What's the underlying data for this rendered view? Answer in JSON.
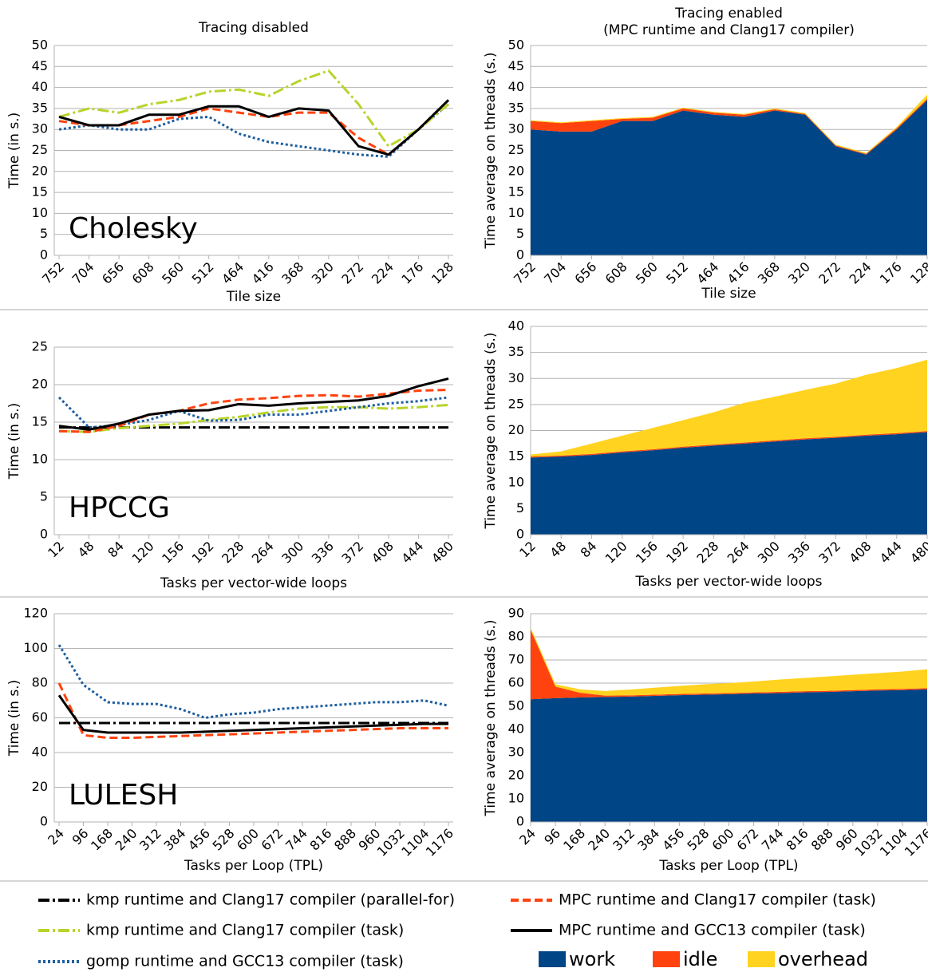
{
  "chart_data": [
    {
      "type": "line",
      "title": "Tracing disabled",
      "annotation": "Cholesky",
      "ylabel": "Time (in s.)",
      "xlabel": "Tile size",
      "categories": [
        752,
        704,
        656,
        608,
        560,
        512,
        464,
        416,
        368,
        320,
        272,
        224,
        176,
        128
      ],
      "ylim": [
        0,
        50
      ],
      "yticks": [
        0,
        5,
        10,
        15,
        20,
        25,
        30,
        35,
        40,
        45,
        50
      ],
      "grid": true,
      "series": [
        {
          "name": "gomp runtime and GCC13 compiler (task)",
          "color": "#1f5f9f",
          "dash": "dot",
          "values": [
            30,
            31,
            30,
            30,
            32.5,
            33,
            29,
            27,
            26,
            25,
            24,
            23.5,
            30,
            36
          ]
        },
        {
          "name": "kmp runtime and Clang17 compiler (task)",
          "color": "#b8d42a",
          "dash": "dash-dot",
          "values": [
            33,
            35,
            34,
            36,
            37,
            39,
            39.5,
            38,
            41.5,
            44,
            36,
            26,
            30,
            36
          ]
        },
        {
          "name": "MPC runtime and Clang17 compiler (task)",
          "color": "#ff420e",
          "dash": "dash",
          "values": [
            32,
            31,
            31,
            32,
            33,
            35,
            34,
            33,
            34,
            34,
            28,
            24,
            30,
            37
          ]
        },
        {
          "name": "MPC runtime and GCC13 compiler (task)",
          "color": "#000000",
          "dash": "solid",
          "values": [
            33,
            31,
            31,
            33.5,
            33.5,
            35.5,
            35.5,
            33,
            35,
            34.5,
            26,
            24,
            30,
            37
          ]
        }
      ]
    },
    {
      "type": "area",
      "title": "Tracing enabled",
      "subtitle": "(MPC runtime and Clang17 compiler)",
      "ylabel": "Time average on threads (s.)",
      "xlabel": "Tile size",
      "categories": [
        752,
        704,
        656,
        608,
        560,
        512,
        464,
        416,
        368,
        320,
        272,
        224,
        176,
        128
      ],
      "ylim": [
        0,
        50
      ],
      "yticks": [
        0,
        5,
        10,
        15,
        20,
        25,
        30,
        35,
        40,
        45,
        50
      ],
      "grid": true,
      "series": [
        {
          "name": "work",
          "color": "#004586",
          "values": [
            30,
            29.5,
            29.5,
            32,
            32,
            34.5,
            33.5,
            33,
            34.5,
            33.5,
            26,
            24,
            30,
            37
          ]
        },
        {
          "name": "idle",
          "color": "#ff420e",
          "values": [
            2,
            2,
            2.5,
            0.5,
            0.8,
            0.5,
            0.5,
            0.5,
            0.3,
            0.2,
            0.2,
            0.2,
            0.3,
            0.3
          ]
        },
        {
          "name": "overhead",
          "color": "#ffd320",
          "values": [
            0.2,
            0.2,
            0.2,
            0.2,
            0.2,
            0.2,
            0.2,
            0.2,
            0.2,
            0.2,
            0.2,
            0.2,
            0.3,
            1
          ]
        }
      ]
    },
    {
      "type": "line",
      "annotation": "HPCCG",
      "ylabel": "Time (in s.)",
      "xlabel": "Tasks per vector-wide loops",
      "categories": [
        12,
        48,
        84,
        120,
        156,
        192,
        228,
        264,
        300,
        336,
        372,
        408,
        444,
        480
      ],
      "ylim": [
        0,
        25
      ],
      "yticks": [
        0,
        5,
        10,
        15,
        20,
        25
      ],
      "grid": true,
      "series": [
        {
          "name": "kmp runtime and Clang17 compiler (parallel-for)",
          "color": "#000000",
          "dash": "dash-dot",
          "values": [
            14.3,
            14.3,
            14.3,
            14.3,
            14.3,
            14.3,
            14.3,
            14.3,
            14.3,
            14.3,
            14.3,
            14.3,
            14.3,
            14.3
          ]
        },
        {
          "name": "kmp runtime and Clang17 compiler (task)",
          "color": "#b8d42a",
          "dash": "dash-dot",
          "values": [
            13.8,
            13.7,
            14.2,
            14.5,
            14.8,
            15.3,
            15.7,
            16.3,
            16.8,
            17,
            17,
            16.8,
            17,
            17.3
          ]
        },
        {
          "name": "gomp runtime and GCC13 compiler (task)",
          "color": "#1f5f9f",
          "dash": "dot",
          "values": [
            18.3,
            14.3,
            14.6,
            15.3,
            16.5,
            15.2,
            15.3,
            16,
            16,
            16.5,
            17,
            17.5,
            17.8,
            18.3
          ]
        },
        {
          "name": "MPC runtime and Clang17 compiler (task)",
          "color": "#ff420e",
          "dash": "dash",
          "values": [
            13.8,
            13.7,
            14.5,
            16,
            16.5,
            17.5,
            18,
            18.2,
            18.5,
            18.6,
            18.4,
            18.8,
            19.2,
            19.3
          ]
        },
        {
          "name": "MPC runtime and GCC13 compiler (task)",
          "color": "#000000",
          "dash": "solid",
          "values": [
            14.5,
            14,
            14.8,
            16,
            16.5,
            16.6,
            17.4,
            17.2,
            17.5,
            17.7,
            17.9,
            18.5,
            19.8,
            20.8
          ]
        }
      ]
    },
    {
      "type": "area",
      "ylabel": "Time average on threads (s.)",
      "xlabel": "Tasks per vector-wide loops",
      "categories": [
        12,
        48,
        84,
        120,
        156,
        192,
        228,
        264,
        300,
        336,
        372,
        408,
        444,
        480
      ],
      "ylim": [
        0,
        40
      ],
      "yticks": [
        0,
        5,
        10,
        15,
        20,
        25,
        30,
        35,
        40
      ],
      "grid": true,
      "series": [
        {
          "name": "work",
          "color": "#004586",
          "values": [
            14.8,
            15,
            15.3,
            15.8,
            16.2,
            16.7,
            17.1,
            17.5,
            17.9,
            18.3,
            18.6,
            19,
            19.3,
            19.7
          ]
        },
        {
          "name": "idle",
          "color": "#ff420e",
          "values": [
            0.2,
            0.2,
            0.2,
            0.2,
            0.2,
            0.2,
            0.2,
            0.2,
            0.2,
            0.2,
            0.2,
            0.2,
            0.2,
            0.2
          ]
        },
        {
          "name": "overhead",
          "color": "#ffd320",
          "values": [
            0.4,
            0.8,
            2,
            3,
            4.1,
            5.1,
            6.2,
            7.6,
            8.4,
            9.3,
            10.2,
            11.5,
            12.5,
            13.7
          ]
        }
      ]
    },
    {
      "type": "line",
      "annotation": "LULESH",
      "ylabel": "Time (in s.)",
      "xlabel": "Tasks per Loop (TPL)",
      "categories": [
        24,
        96,
        168,
        240,
        312,
        384,
        456,
        528,
        600,
        672,
        744,
        816,
        888,
        960,
        1032,
        1104,
        1176
      ],
      "ylim": [
        0,
        120
      ],
      "yticks": [
        0,
        20,
        40,
        60,
        80,
        100,
        120
      ],
      "grid": true,
      "series": [
        {
          "name": "kmp runtime and Clang17 compiler (parallel-for)",
          "color": "#000000",
          "dash": "dash-dot",
          "values": [
            57,
            57,
            57,
            57,
            57,
            57,
            57,
            57,
            57,
            57,
            57,
            57,
            57,
            57,
            57,
            57,
            57
          ]
        },
        {
          "name": "gomp runtime and GCC13 compiler (task)",
          "color": "#1f5f9f",
          "dash": "dot",
          "values": [
            102,
            79,
            69,
            68,
            68,
            65,
            60,
            62,
            63,
            65,
            66,
            67,
            68,
            69,
            69,
            70,
            67
          ]
        },
        {
          "name": "MPC runtime and Clang17 compiler (task)",
          "color": "#ff420e",
          "dash": "dash",
          "values": [
            80,
            50,
            48.5,
            48.5,
            49,
            49.5,
            50,
            50.5,
            51,
            51.5,
            52,
            52.5,
            53,
            53.5,
            54,
            54,
            54
          ]
        },
        {
          "name": "MPC runtime and GCC13 compiler (task)",
          "color": "#000000",
          "dash": "solid",
          "values": [
            73,
            53,
            51.5,
            51.5,
            51.5,
            51.5,
            52,
            52.5,
            53,
            53.5,
            54,
            54.5,
            55,
            55.5,
            56,
            56.5,
            56.5
          ]
        }
      ]
    },
    {
      "type": "area",
      "ylabel": "Time average on threads (s.)",
      "xlabel": "Tasks per Loop (TPL)",
      "categories": [
        24,
        96,
        168,
        240,
        312,
        384,
        456,
        528,
        600,
        672,
        744,
        816,
        888,
        960,
        1032,
        1104,
        1176
      ],
      "ylim": [
        0,
        90
      ],
      "yticks": [
        0,
        10,
        20,
        30,
        40,
        50,
        60,
        70,
        80,
        90
      ],
      "grid": true,
      "series": [
        {
          "name": "work",
          "color": "#004586",
          "values": [
            53,
            53.5,
            53.8,
            54,
            54.2,
            54.5,
            54.8,
            55,
            55.2,
            55.5,
            55.7,
            56,
            56.2,
            56.5,
            56.8,
            57,
            57.3
          ]
        },
        {
          "name": "idle",
          "color": "#ff420e",
          "values": [
            30,
            5,
            2,
            0.6,
            0.5,
            0.5,
            0.5,
            0.5,
            0.5,
            0.5,
            0.5,
            0.5,
            0.5,
            0.5,
            0.5,
            0.5,
            0.5
          ]
        },
        {
          "name": "overhead",
          "color": "#ffd320",
          "values": [
            1,
            1,
            1.5,
            2,
            2.5,
            3,
            3.5,
            4,
            4.3,
            4.7,
            5.3,
            5.7,
            6.2,
            6.6,
            7,
            7.5,
            8.2
          ]
        }
      ]
    }
  ]
}
